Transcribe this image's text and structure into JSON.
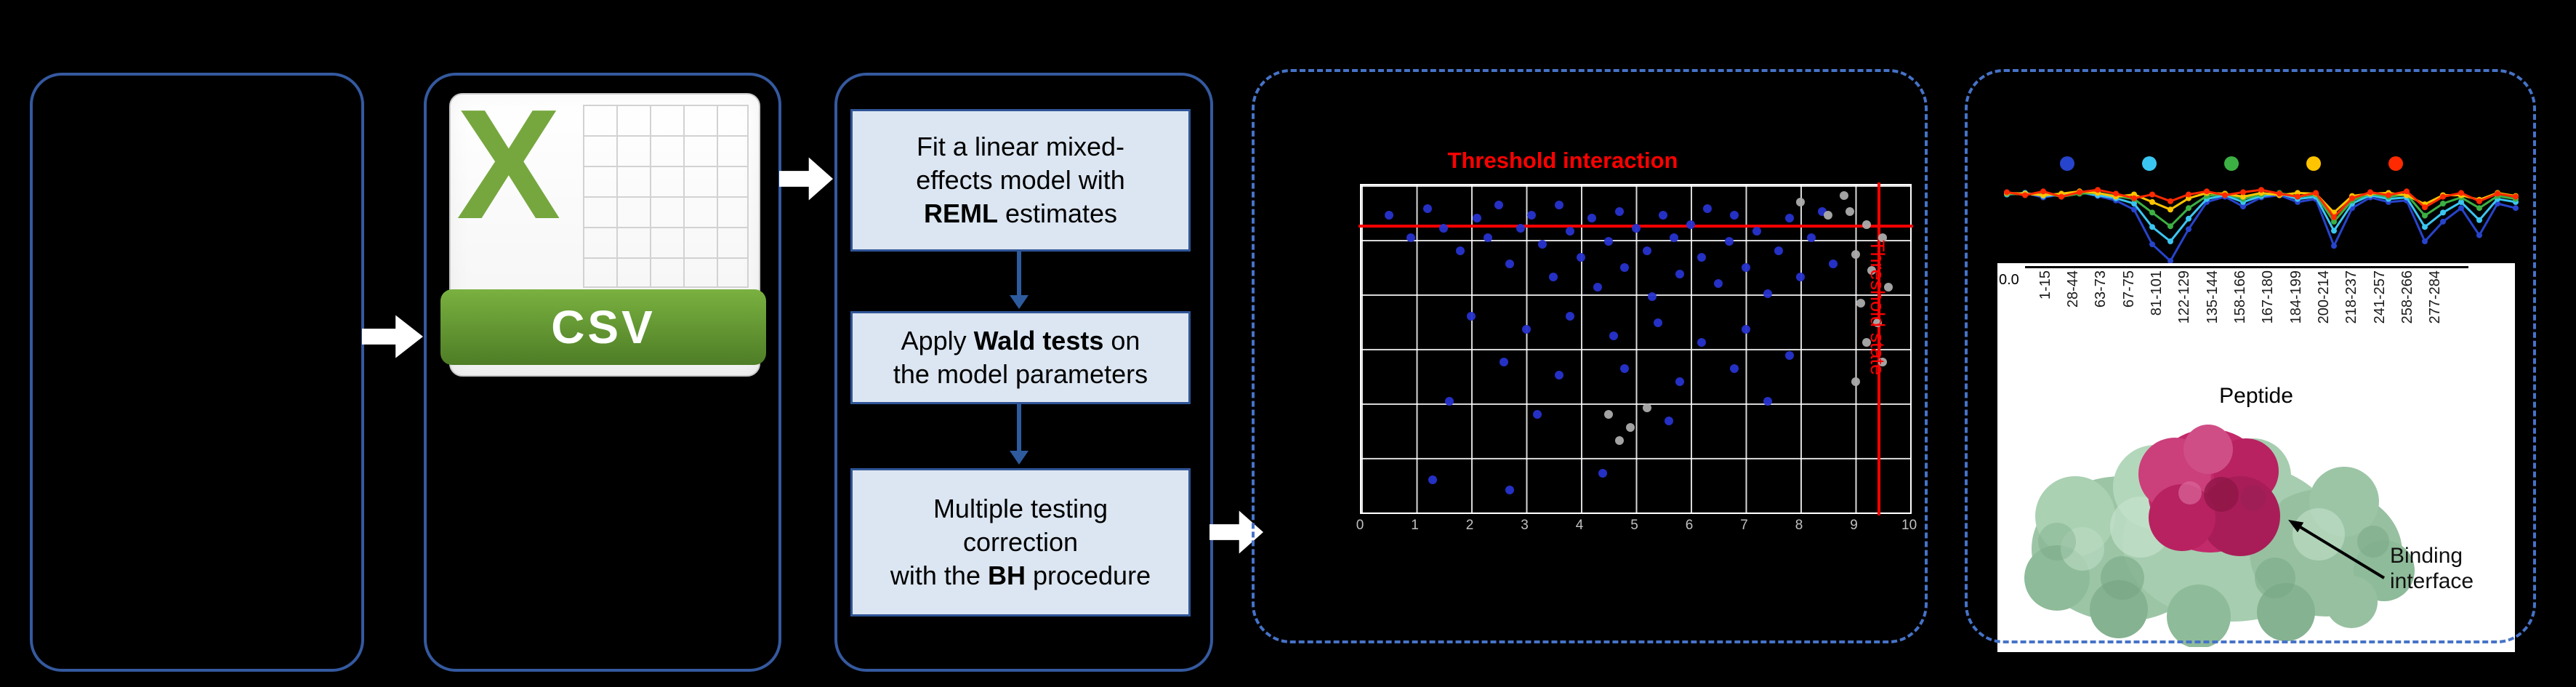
{
  "colors": {
    "background": "#000000",
    "panel_border": "#34599F",
    "dashed_panel_border": "#4673C8",
    "step_box_fill": "#DCE6F2",
    "step_box_border": "#2F5597",
    "flow_arrow": "#FFFFFF",
    "threshold_red": "#FF0000",
    "csv_green": "#76A73F"
  },
  "csv_panel": {
    "logo_letter": "X",
    "file_type_label": "CSV"
  },
  "pipeline_panel": {
    "steps": [
      {
        "segments": [
          {
            "t": "Fit a linear mixed-\neffects model with\n",
            "b": false
          },
          {
            "t": "REML",
            "b": true
          },
          {
            "t": " estimates",
            "b": false
          }
        ]
      },
      {
        "segments": [
          {
            "t": "Apply ",
            "b": false
          },
          {
            "t": "Wald tests",
            "b": true
          },
          {
            "t": " on\nthe model parameters",
            "b": false
          }
        ]
      },
      {
        "segments": [
          {
            "t": "Multiple testing\ncorrection\nwith the ",
            "b": false
          },
          {
            "t": "BH",
            "b": true
          },
          {
            "t": " procedure",
            "b": false
          }
        ]
      }
    ]
  },
  "protein": {
    "annotation": "Binding\ninterface"
  },
  "chart_data": [
    {
      "id": "global-significance-scatter",
      "type": "scatter",
      "title": "Threshold interaction",
      "grid": {
        "cols": 10,
        "rows": 6,
        "line_color": "#FFFFFF"
      },
      "x_ticks": [
        "0",
        "1",
        "2",
        "3",
        "4",
        "5",
        "6",
        "7",
        "8",
        "9",
        "10"
      ],
      "thresholds": {
        "horizontal": {
          "label": "Threshold interaction",
          "y_pct": 12,
          "color": "#FF0000"
        },
        "vertical": {
          "label": "Threshold state",
          "x_pct": 94,
          "color": "#FF0000"
        }
      },
      "series": [
        {
          "name": "significant-peptides",
          "color": "#2733D0",
          "points_pct": [
            [
              5,
              9
            ],
            [
              9,
              16
            ],
            [
              12,
              7
            ],
            [
              15,
              13
            ],
            [
              18,
              20
            ],
            [
              21,
              10
            ],
            [
              23,
              16
            ],
            [
              25,
              6
            ],
            [
              27,
              24
            ],
            [
              29,
              13
            ],
            [
              31,
              9
            ],
            [
              33,
              18
            ],
            [
              35,
              28
            ],
            [
              36,
              6
            ],
            [
              38,
              14
            ],
            [
              40,
              22
            ],
            [
              42,
              10
            ],
            [
              43,
              31
            ],
            [
              45,
              17
            ],
            [
              47,
              8
            ],
            [
              48,
              25
            ],
            [
              50,
              13
            ],
            [
              52,
              20
            ],
            [
              53,
              34
            ],
            [
              55,
              9
            ],
            [
              57,
              16
            ],
            [
              58,
              27
            ],
            [
              60,
              12
            ],
            [
              62,
              22
            ],
            [
              63,
              7
            ],
            [
              65,
              30
            ],
            [
              67,
              17
            ],
            [
              68,
              9
            ],
            [
              70,
              25
            ],
            [
              72,
              14
            ],
            [
              74,
              33
            ],
            [
              76,
              20
            ],
            [
              78,
              10
            ],
            [
              80,
              28
            ],
            [
              82,
              16
            ],
            [
              84,
              8
            ],
            [
              20,
              40
            ],
            [
              30,
              44
            ],
            [
              38,
              40
            ],
            [
              46,
              46
            ],
            [
              54,
              42
            ],
            [
              62,
              48
            ],
            [
              70,
              44
            ],
            [
              26,
              54
            ],
            [
              36,
              58
            ],
            [
              48,
              56
            ],
            [
              58,
              60
            ],
            [
              68,
              56
            ],
            [
              16,
              66
            ],
            [
              32,
              70
            ],
            [
              56,
              72
            ],
            [
              13,
              90
            ],
            [
              27,
              93
            ],
            [
              44,
              88
            ],
            [
              74,
              66
            ],
            [
              78,
              52
            ],
            [
              86,
              24
            ]
          ]
        },
        {
          "name": "non-significant-peptides",
          "color": "#ACACAC",
          "points_pct": [
            [
              80,
              5
            ],
            [
              85,
              9
            ],
            [
              88,
              3
            ],
            [
              89,
              8
            ],
            [
              92,
              12
            ],
            [
              95,
              16
            ],
            [
              90,
              21
            ],
            [
              93,
              26
            ],
            [
              96,
              31
            ],
            [
              91,
              36
            ],
            [
              94,
              42
            ],
            [
              92,
              48
            ],
            [
              95,
              54
            ],
            [
              90,
              60
            ],
            [
              45,
              70
            ],
            [
              49,
              74
            ],
            [
              52,
              68
            ],
            [
              47,
              78
            ]
          ]
        }
      ]
    },
    {
      "id": "peptide-deuterium-uptake-profile",
      "type": "line",
      "xlabel": "Peptide",
      "y_tick_label": "0.0",
      "ylim": [
        0,
        1
      ],
      "x_tick_labels": [
        "1-15",
        "28-44",
        "63-73",
        "67-75",
        "81-101",
        "122-129",
        "135-144",
        "158-166",
        "167-180",
        "184-199",
        "200-214",
        "218-237",
        "241-257",
        "258-266",
        "277-284"
      ],
      "series": [
        {
          "name": "state-blue",
          "color": "#2744CC",
          "values": [
            0.12,
            0.1,
            0.16,
            0.12,
            0.09,
            0.14,
            0.2,
            0.32,
            0.78,
            1.0,
            0.58,
            0.22,
            0.15,
            0.28,
            0.16,
            0.13,
            0.22,
            0.18,
            0.8,
            0.3,
            0.16,
            0.22,
            0.2,
            0.74,
            0.48,
            0.3,
            0.66,
            0.24,
            0.3
          ]
        },
        {
          "name": "state-cyan",
          "color": "#3BC6F2",
          "values": [
            0.12,
            0.1,
            0.14,
            0.12,
            0.09,
            0.13,
            0.17,
            0.24,
            0.55,
            0.74,
            0.44,
            0.18,
            0.13,
            0.22,
            0.14,
            0.11,
            0.18,
            0.15,
            0.6,
            0.24,
            0.13,
            0.18,
            0.16,
            0.55,
            0.36,
            0.22,
            0.46,
            0.18,
            0.22
          ]
        },
        {
          "name": "state-green",
          "color": "#3CB043",
          "values": [
            0.11,
            0.12,
            0.1,
            0.15,
            0.11,
            0.1,
            0.14,
            0.18,
            0.36,
            0.54,
            0.3,
            0.14,
            0.11,
            0.18,
            0.12,
            0.1,
            0.15,
            0.12,
            0.48,
            0.2,
            0.11,
            0.15,
            0.12,
            0.4,
            0.24,
            0.16,
            0.3,
            0.14,
            0.18
          ]
        },
        {
          "name": "state-yellow",
          "color": "#FFC400",
          "values": [
            0.1,
            0.11,
            0.13,
            0.11,
            0.08,
            0.1,
            0.15,
            0.12,
            0.22,
            0.32,
            0.17,
            0.1,
            0.11,
            0.15,
            0.1,
            0.13,
            0.1,
            0.11,
            0.36,
            0.14,
            0.11,
            0.1,
            0.13,
            0.25,
            0.13,
            0.13,
            0.19,
            0.1,
            0.14
          ]
        },
        {
          "name": "state-red",
          "color": "#FF2A00",
          "values": [
            0.09,
            0.13,
            0.08,
            0.15,
            0.09,
            0.06,
            0.11,
            0.17,
            0.12,
            0.21,
            0.12,
            0.08,
            0.13,
            0.09,
            0.06,
            0.11,
            0.15,
            0.1,
            0.42,
            0.17,
            0.09,
            0.13,
            0.08,
            0.29,
            0.15,
            0.1,
            0.21,
            0.11,
            0.15
          ]
        }
      ]
    }
  ]
}
